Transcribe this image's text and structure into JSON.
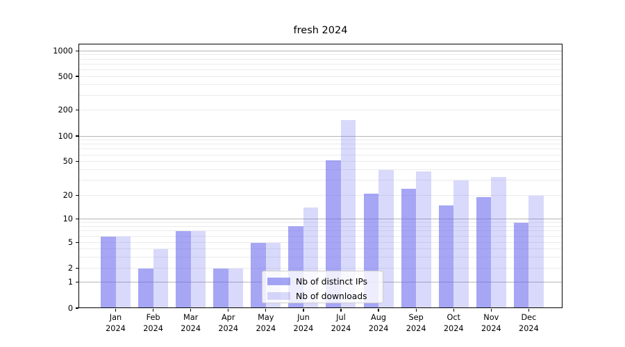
{
  "title": "fresh 2024",
  "chart_data": {
    "type": "bar",
    "title": "fresh 2024",
    "categories": [
      "Jan 2024",
      "Feb 2024",
      "Mar 2024",
      "Apr 2024",
      "May 2024",
      "Jun 2024",
      "Jul 2024",
      "Aug 2024",
      "Sep 2024",
      "Oct 2024",
      "Nov 2024",
      "Dec 2024"
    ],
    "series": [
      {
        "name": "Nb of distinct IPs",
        "values": [
          6,
          2,
          7,
          2,
          5,
          8,
          52,
          21,
          24,
          15,
          19,
          9
        ],
        "color": "rgba(102,102,238,0.58)"
      },
      {
        "name": "Nb of downloads",
        "values": [
          6,
          4,
          7,
          2,
          5,
          14,
          152,
          40,
          38,
          30,
          33,
          20
        ],
        "color": "rgba(102,102,238,0.25)"
      }
    ],
    "y_ticks": [
      0,
      1,
      2,
      5,
      10,
      20,
      50,
      100,
      200,
      500,
      1000
    ],
    "y_scale": "symlog-like (linear 0-1, logarithmic above)",
    "ylim": [
      0,
      1200
    ],
    "grid": true,
    "legend_position": "lower center",
    "colors": {
      "bar_base": "#6666ee",
      "grid_major": "#b5b5b5",
      "grid_minor": "#ebebeb",
      "spine": "#000000",
      "text": "#000000",
      "background": "#ffffff"
    }
  }
}
